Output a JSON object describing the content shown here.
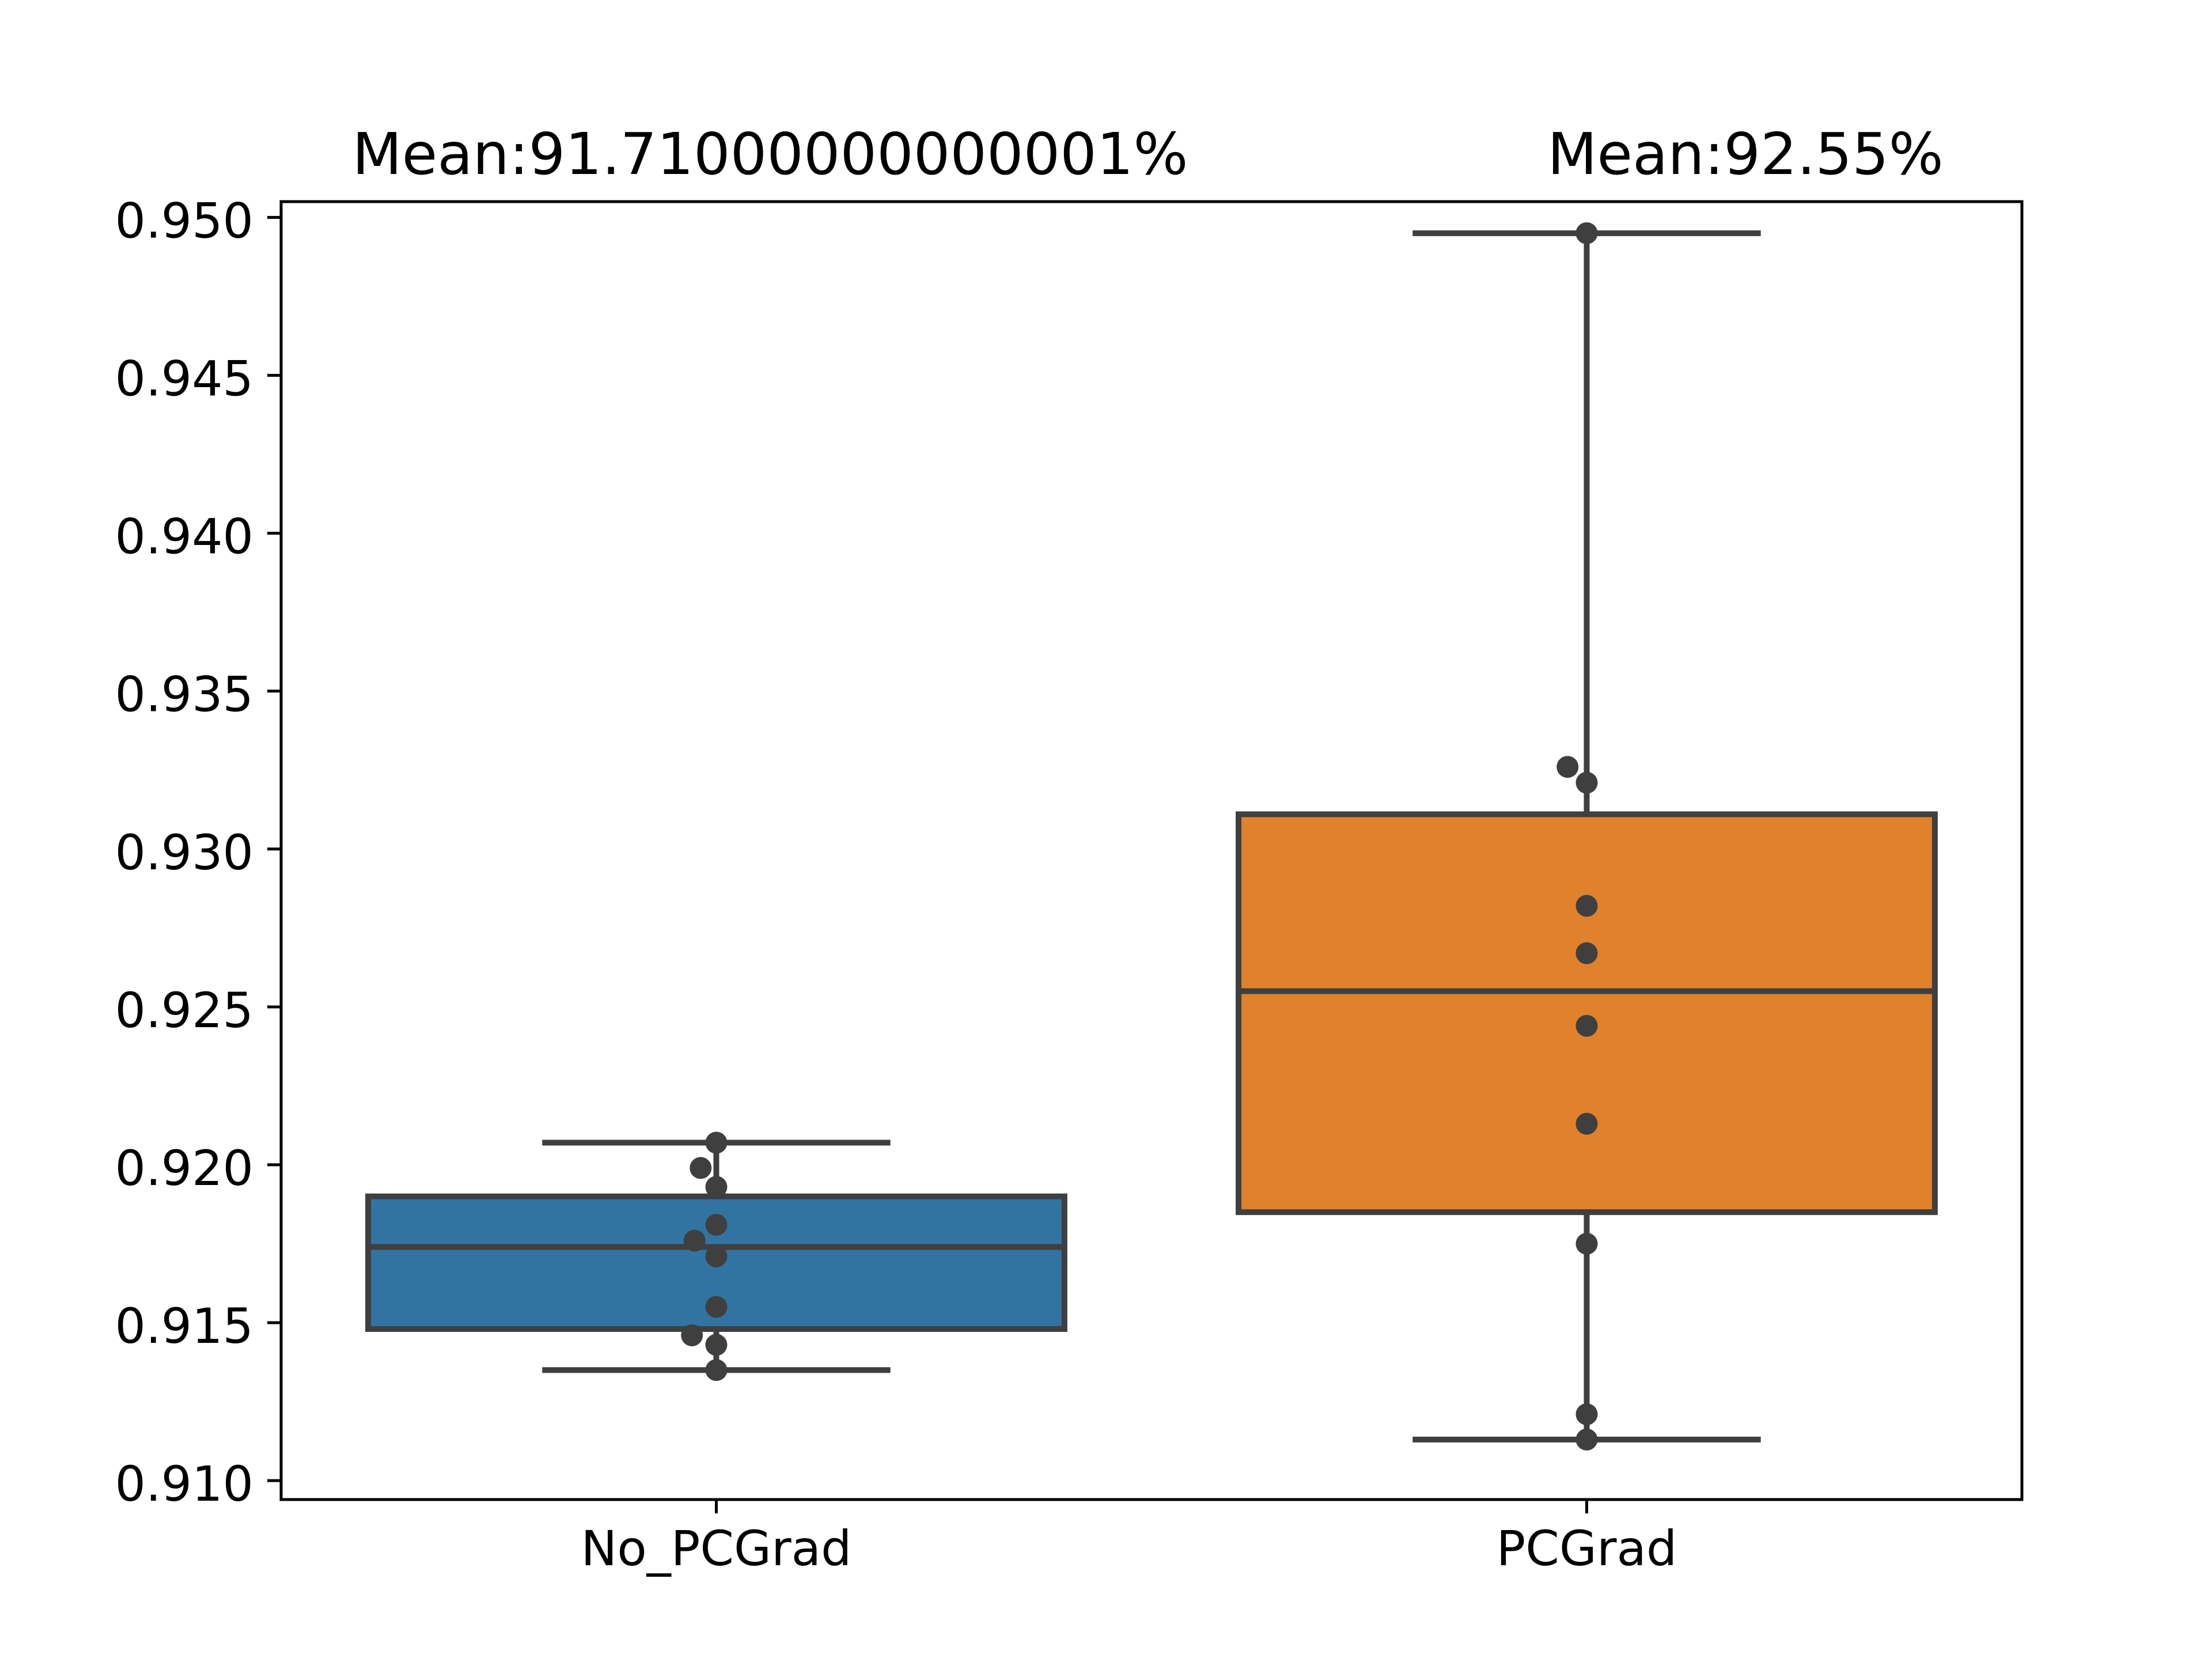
{
  "chart_data": {
    "type": "box",
    "categories": [
      "No_PCGrad",
      "PCGrad"
    ],
    "mean_labels": [
      "Mean:91.71000000000001%",
      "Mean:92.55%"
    ],
    "colors": [
      "#3274a1",
      "#e1812c"
    ],
    "ylim": [
      0.9094,
      0.9505
    ],
    "yticks": [
      0.91,
      0.915,
      0.92,
      0.925,
      0.93,
      0.935,
      0.94,
      0.945,
      0.95
    ],
    "ytick_labels": [
      "0.910",
      "0.915",
      "0.920",
      "0.925",
      "0.930",
      "0.935",
      "0.940",
      "0.945",
      "0.950"
    ],
    "boxes": [
      {
        "whisker_low": 0.9135,
        "q1": 0.9148,
        "median": 0.9174,
        "q3": 0.919,
        "whisker_high": 0.9207
      },
      {
        "whisker_low": 0.9113,
        "q1": 0.9185,
        "median": 0.9255,
        "q3": 0.9311,
        "whisker_high": 0.9495
      }
    ],
    "points": [
      [
        {
          "y": 0.9207,
          "dx": 0.0
        },
        {
          "y": 0.9199,
          "dx": -0.018
        },
        {
          "y": 0.9193,
          "dx": 0.0
        },
        {
          "y": 0.9181,
          "dx": 0.0
        },
        {
          "y": 0.9176,
          "dx": -0.025
        },
        {
          "y": 0.9171,
          "dx": 0.0
        },
        {
          "y": 0.9155,
          "dx": 0.0
        },
        {
          "y": 0.9146,
          "dx": -0.028
        },
        {
          "y": 0.9143,
          "dx": 0.0
        },
        {
          "y": 0.9135,
          "dx": 0.0
        }
      ],
      [
        {
          "y": 0.9495,
          "dx": 0.0
        },
        {
          "y": 0.9326,
          "dx": -0.022
        },
        {
          "y": 0.9321,
          "dx": 0.0
        },
        {
          "y": 0.9282,
          "dx": 0.0
        },
        {
          "y": 0.9267,
          "dx": 0.0
        },
        {
          "y": 0.9244,
          "dx": 0.0
        },
        {
          "y": 0.9213,
          "dx": 0.0
        },
        {
          "y": 0.9175,
          "dx": 0.0
        },
        {
          "y": 0.9121,
          "dx": 0.0
        },
        {
          "y": 0.9113,
          "dx": 0.0
        }
      ]
    ]
  }
}
